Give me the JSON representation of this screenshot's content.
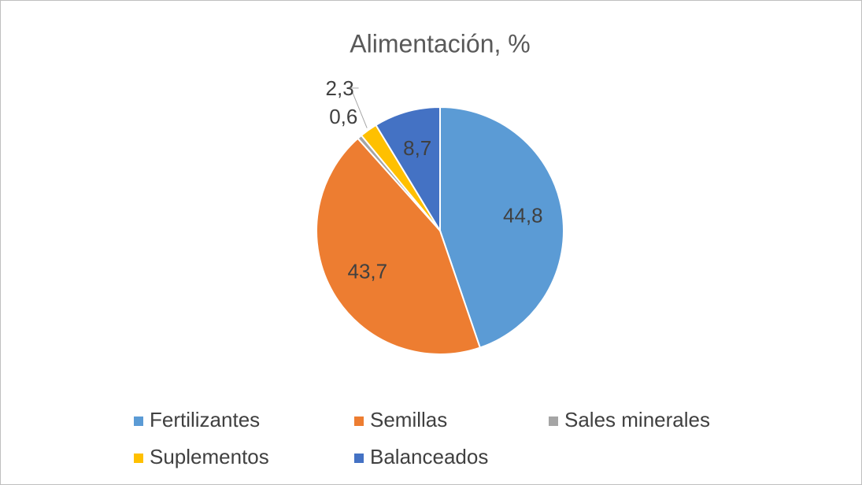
{
  "chart_data": {
    "type": "pie",
    "title": "Alimentación, %",
    "categories": [
      "Fertilizantes",
      "Semillas",
      "Sales minerales",
      "Suplementos",
      "Balanceados"
    ],
    "values": [
      44.8,
      43.7,
      0.6,
      2.3,
      8.7
    ],
    "value_labels": [
      "44,8",
      "43,7",
      "0,6",
      "2,3",
      "8,7"
    ],
    "colors": [
      "#5b9bd5",
      "#ed7d31",
      "#a5a5a5",
      "#ffc000",
      "#4472c4"
    ],
    "legend": "bottom"
  }
}
